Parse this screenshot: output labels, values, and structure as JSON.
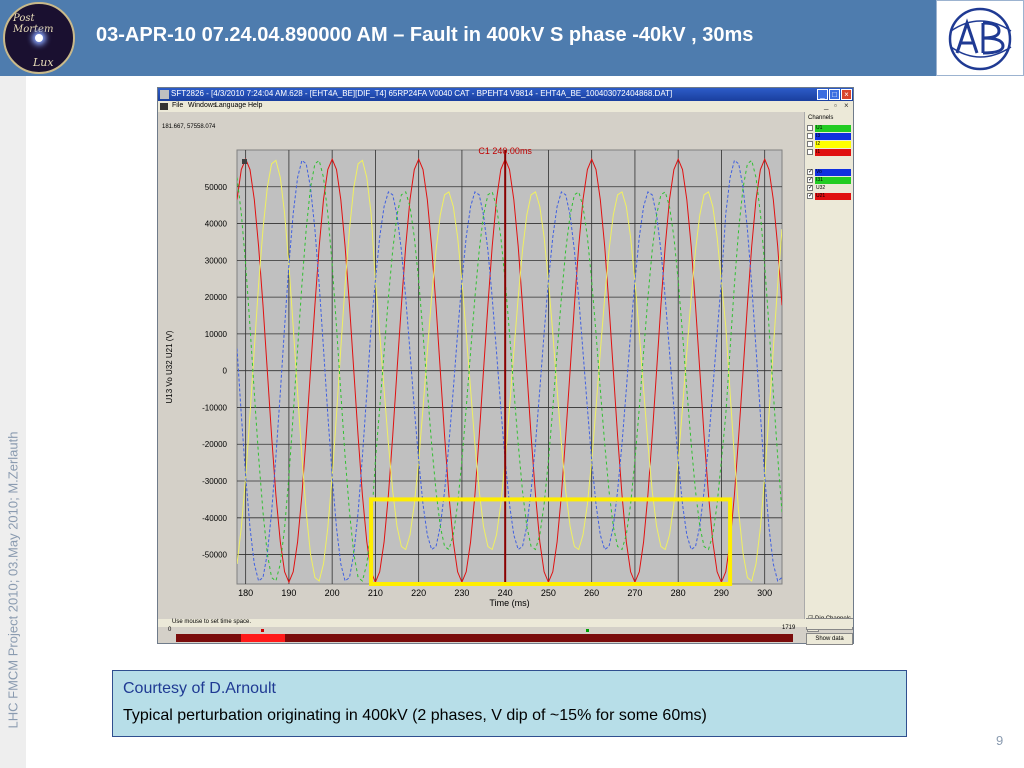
{
  "slide": {
    "title": "03-APR-10 07.24.04.890000 AM – Fault in 400kV S phase -40kV , 30ms",
    "side_text": "LHC FMCM Project 2010; 03.May 2010; M.Zerlauth",
    "slide_number": "9",
    "logo_left_text1": "Post Mortem",
    "logo_left_text2": "Lux"
  },
  "app": {
    "window_title": "SFT2826 - [4/3/2010 7:24:04 AM.628 - [EHT4A_BE][DIF_T4] 65RP24FA V0040 CAT - BPEHT4   V9814 - EHT4A_BE_100403072404868.DAT]",
    "window_buttons": {
      "minimize": "_",
      "maximize": "□",
      "close": "×"
    },
    "menu": [
      "File",
      "Windows",
      "Language",
      "Help"
    ],
    "mdi_buttons": [
      "_",
      "▫",
      "×"
    ],
    "coord_readout": "181.667, 57558.074",
    "status_text": "Use mouse to set time space.",
    "zero_label": "0",
    "sample_count": "1719",
    "channels_title": "Channels",
    "channels": [
      {
        "label": "U1",
        "color": "#22cc22",
        "checked": false
      },
      {
        "label": "I3",
        "color": "#1030e0",
        "checked": false
      },
      {
        "label": "I2",
        "color": "#ffff00",
        "checked": false
      },
      {
        "label": "I1",
        "color": "#e01010",
        "checked": false
      },
      {
        "label": "Vo",
        "color": "#1030e0",
        "checked": true
      },
      {
        "label": "I31",
        "color": "#22cc22",
        "checked": true
      },
      {
        "label": "U32",
        "color": "#ece9d8",
        "checked": true
      },
      {
        "label": "U21",
        "color": "#e01010",
        "checked": true
      }
    ],
    "dig_channels_label": "Dig Channels",
    "undo_zoom_label": "Undo Zoom",
    "show_data_label": "Show data"
  },
  "chart_data": {
    "type": "line",
    "cursor_label": "C1 240.00ms",
    "cursor_x": 240,
    "xlabel": "Time (ms)",
    "ylabel": "U13 Vo U32 U21 (V)",
    "xlim": [
      178,
      304
    ],
    "ylim": [
      -58000,
      60000
    ],
    "x_ticks": [
      180,
      190,
      200,
      210,
      220,
      230,
      240,
      250,
      260,
      270,
      280,
      290,
      300
    ],
    "y_ticks": [
      50000,
      40000,
      30000,
      20000,
      10000,
      0,
      -10000,
      -20000,
      -30000,
      -40000,
      -50000
    ],
    "grid": true,
    "frequency_hz": 50,
    "series": [
      {
        "name": "U21",
        "color": "#e01010",
        "amplitude": 57500,
        "phase_deg": 90,
        "dash": ""
      },
      {
        "name": "U32",
        "color": "#f0f060",
        "amplitude": 57500,
        "phase_deg": -30,
        "dash": ""
      },
      {
        "name": "U13",
        "color": "#4060e0",
        "amplitude": 57500,
        "phase_deg": 210,
        "dash": "3,2"
      },
      {
        "name": "Vo",
        "color": "#30c030",
        "amplitude": 57500,
        "phase_deg": 150,
        "dash": "3,3"
      }
    ],
    "dip": {
      "start_ms": 210,
      "end_ms": 290,
      "depth_fraction": 0.15
    },
    "highlight": {
      "x_start": 209,
      "x_end": 292,
      "y_top": -35000,
      "y_bottom": -58000,
      "color": "#ffee00"
    }
  },
  "caption": {
    "line1": "Courtesy of D.Arnoult",
    "line2": "Typical perturbation originating in 400kV (2 phases, V dip of ~15% for some 60ms)"
  }
}
